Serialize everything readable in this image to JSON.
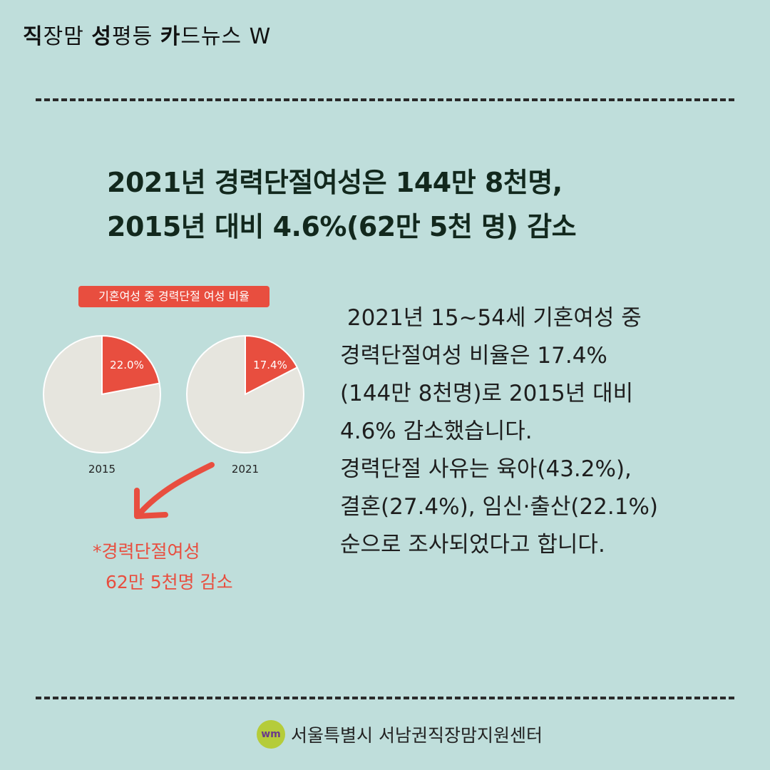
{
  "brand": {
    "parts": [
      "직",
      "장맘 ",
      "성",
      "평등 ",
      "카",
      "드뉴스 W"
    ]
  },
  "headline": {
    "line1": "2021년 경력단절여성은 144만 8천명,",
    "line2": "2015년 대비 4.6%(62만 5천 명) 감소"
  },
  "chart_data": {
    "type": "pie",
    "title": "기혼여성 중 경력단절 여성 비율",
    "pies": [
      {
        "label": "2015",
        "value": 22.0,
        "value_label": "22.0%"
      },
      {
        "label": "2021",
        "value": 17.4,
        "value_label": "17.4%"
      }
    ],
    "colors": {
      "highlight": "#e84e3f",
      "rest": "#e6e5de"
    }
  },
  "note": {
    "line1": "*경력단절여성",
    "line2": "62만 5천명 감소"
  },
  "body": {
    "lines": [
      " 2021년 15~54세 기혼여성 중",
      "경력단절여성 비율은 17.4%",
      "(144만 8천명)로 2015년 대비",
      "4.6% 감소했습니다.",
      "경력단절 사유는 육아(43.2%),",
      "결혼(27.4%), 임신·출산(22.1%)",
      "순으로 조사되었다고 합니다."
    ]
  },
  "footer": {
    "logo_mark": "wm",
    "org": "서울특별시 서남권직장맘지원센터"
  }
}
